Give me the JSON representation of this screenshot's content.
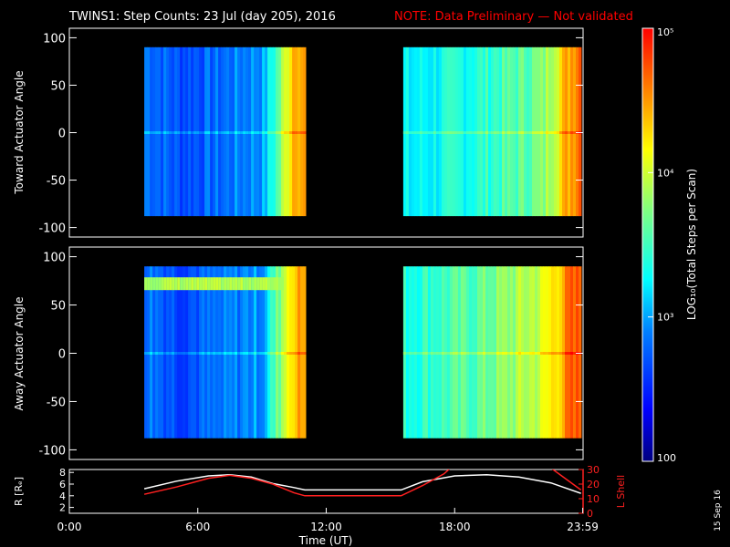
{
  "header": {
    "title": "TWINS1: Step Counts: 23 Jul (day 205), 2016",
    "note": "NOTE: Data Preliminary — Not validated"
  },
  "colors": {
    "background": "#000000",
    "axis": "#ffffff",
    "note": "#ff0000",
    "r_line": "#ffffff",
    "l_line": "#ff2020"
  },
  "chart_data": [
    {
      "type": "heatmap",
      "name": "toward-spectrogram",
      "ylabel": "Toward Actuator Angle",
      "ylim": [
        -110,
        110
      ],
      "yticks": [
        -100,
        -50,
        0,
        50,
        100
      ],
      "xlim": [
        0,
        24
      ],
      "data_intervals_hours": [
        [
          3.5,
          11.0
        ],
        [
          15.6,
          23.9
        ]
      ],
      "angle_range": [
        -88,
        90
      ],
      "log10_counts_profile": [
        {
          "t": 3.5,
          "v": 2.9
        },
        {
          "t": 5.0,
          "v": 2.7
        },
        {
          "t": 7.0,
          "v": 2.8
        },
        {
          "t": 9.0,
          "v": 3.0
        },
        {
          "t": 9.7,
          "v": 3.6
        },
        {
          "t": 10.5,
          "v": 4.6
        },
        {
          "t": 11.0,
          "v": 4.4
        },
        {
          "t": 15.6,
          "v": 3.2
        },
        {
          "t": 19.0,
          "v": 3.4
        },
        {
          "t": 22.0,
          "v": 3.7
        },
        {
          "t": 23.3,
          "v": 4.5
        },
        {
          "t": 23.9,
          "v": 4.8
        }
      ]
    },
    {
      "type": "heatmap",
      "name": "away-spectrogram",
      "ylabel": "Away Actuator Angle",
      "ylim": [
        -110,
        110
      ],
      "yticks": [
        -100,
        -50,
        0,
        50,
        100
      ],
      "xlim": [
        0,
        24
      ],
      "data_intervals_hours": [
        [
          3.5,
          11.0
        ],
        [
          15.6,
          23.9
        ]
      ],
      "angle_range": [
        -88,
        90
      ],
      "enhanced_band_angle": 72,
      "log10_counts_profile": [
        {
          "t": 3.5,
          "v": 2.9
        },
        {
          "t": 5.0,
          "v": 2.7
        },
        {
          "t": 7.0,
          "v": 2.8
        },
        {
          "t": 9.0,
          "v": 3.0
        },
        {
          "t": 9.7,
          "v": 3.7
        },
        {
          "t": 10.5,
          "v": 4.5
        },
        {
          "t": 11.0,
          "v": 4.4
        },
        {
          "t": 15.6,
          "v": 3.4
        },
        {
          "t": 19.0,
          "v": 3.6
        },
        {
          "t": 22.0,
          "v": 4.0
        },
        {
          "t": 23.3,
          "v": 4.6
        },
        {
          "t": 23.9,
          "v": 4.7
        }
      ]
    },
    {
      "type": "line",
      "name": "orbit-panel",
      "xlabel": "Time (UT)",
      "xticks": [
        "0:00",
        "6:00",
        "12:00",
        "18:00",
        "23:59"
      ],
      "xtick_hours": [
        0,
        6,
        12,
        18,
        23.983
      ],
      "xlim": [
        0,
        24
      ],
      "left_axis": {
        "label": "R [Rₑ]",
        "ylim": [
          1,
          8.5
        ],
        "yticks": [
          2,
          4,
          6,
          8
        ]
      },
      "right_axis": {
        "label": "L Shell",
        "ylim": [
          0,
          30
        ],
        "yticks": [
          0,
          10,
          20,
          30
        ]
      },
      "series": [
        {
          "name": "R",
          "axis": "left",
          "x": [
            3.5,
            5.0,
            6.5,
            7.5,
            8.5,
            9.5,
            10.5,
            11.0,
            15.5,
            16.5,
            18.0,
            19.5,
            21.0,
            22.5,
            23.9
          ],
          "y": [
            5.2,
            6.5,
            7.4,
            7.6,
            7.2,
            6.1,
            5.4,
            5.0,
            5.0,
            6.4,
            7.4,
            7.6,
            7.2,
            6.2,
            4.4
          ]
        },
        {
          "name": "L",
          "axis": "right",
          "x": [
            3.5,
            5.0,
            6.5,
            7.5,
            8.5,
            9.5,
            10.5,
            11.0,
            15.5,
            16.5,
            17.5,
            17.8,
            22.5,
            23.9
          ],
          "y": [
            13,
            18,
            24,
            26,
            24,
            20,
            14,
            12,
            12,
            19,
            27,
            31,
            31,
            16
          ]
        }
      ]
    },
    {
      "type": "colorbar",
      "name": "colorbar",
      "label": "LOG₁₀(Total Steps per Scan)",
      "scale": "log",
      "range": [
        100,
        100000
      ],
      "tick_values": [
        100,
        1000,
        10000,
        100000
      ],
      "tick_labels": [
        "100",
        "10³",
        "10⁴",
        "10⁵"
      ]
    }
  ],
  "footer": {
    "date_stamp": "15 Sep 16"
  }
}
